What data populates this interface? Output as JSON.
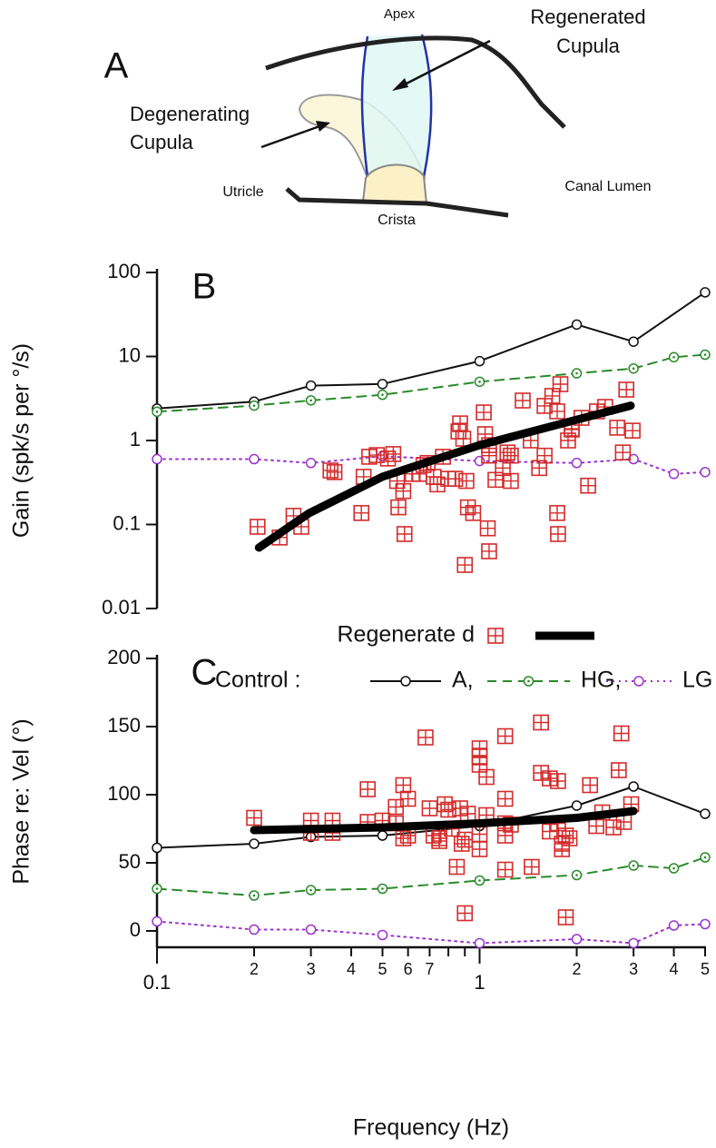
{
  "diagram": {
    "panel": "A",
    "apex": "Apex",
    "regenerated": [
      "Regenerated",
      "Cupula"
    ],
    "degenerating": [
      "Degenerating",
      "Cupula"
    ],
    "utricle": "Utricle",
    "crista": "Crista",
    "lumen": "Canal Lumen"
  },
  "chart_data": [
    {
      "type": "line",
      "panel": "B",
      "ylabel": "Gain (spk/s per °/s)",
      "xlog": true,
      "ylog": true,
      "xlim": [
        0.1,
        5
      ],
      "ylim": [
        0.01,
        100
      ],
      "yticks": [
        0.01,
        0.1,
        1,
        10,
        100
      ],
      "legend_title": "Control :",
      "series": [
        {
          "name": "A,",
          "color": "#111111",
          "line_style": "solid",
          "marker": "circle",
          "x": [
            0.1,
            0.2,
            0.3,
            0.5,
            1,
            2,
            3,
            5
          ],
          "values": [
            2.4,
            2.9,
            4.5,
            4.7,
            8.8,
            24,
            15,
            58
          ]
        },
        {
          "name": "HG,",
          "color": "#2a8a2a",
          "line_style": "dashed",
          "marker": "circle-dot",
          "x": [
            0.1,
            0.2,
            0.3,
            0.5,
            1,
            2,
            3,
            4,
            5
          ],
          "values": [
            2.2,
            2.6,
            3.0,
            3.5,
            5.0,
            6.3,
            7.2,
            9.8,
            10.5
          ]
        },
        {
          "name": "LG",
          "color": "#9933cc",
          "line_style": "dotted",
          "marker": "circle",
          "x": [
            0.1,
            0.2,
            0.3,
            0.5,
            1,
            2,
            3,
            4,
            5
          ],
          "values": [
            0.6,
            0.6,
            0.54,
            0.65,
            0.57,
            0.54,
            0.6,
            0.4,
            0.42
          ]
        },
        {
          "name": "Regenerate d",
          "type": "scatter",
          "color": "#d42a2a",
          "marker": "boxed-plus",
          "x": [
            0.205,
            0.24,
            0.265,
            0.28,
            0.345,
            0.355,
            0.43,
            0.437,
            0.455,
            0.48,
            0.52,
            0.54,
            0.555,
            0.56,
            0.58,
            0.585,
            0.62,
            0.65,
            0.67,
            0.69,
            0.72,
            0.74,
            0.77,
            0.8,
            0.84,
            0.86,
            0.87,
            0.89,
            0.9,
            0.91,
            0.92,
            0.955,
            1.03,
            1.04,
            1.06,
            1.07,
            1.07,
            1.07,
            1.12,
            1.18,
            1.22,
            1.25,
            1.25,
            1.36,
            1.44,
            1.53,
            1.59,
            1.59,
            1.68,
            1.74,
            1.74,
            1.75,
            1.78,
            1.88,
            1.93,
            1.93,
            2.07,
            2.17,
            2.31,
            2.45,
            2.67,
            2.78,
            2.85,
            2.98
          ],
          "values": [
            0.094,
            0.07,
            0.127,
            0.094,
            0.44,
            0.42,
            0.137,
            0.37,
            0.64,
            0.67,
            0.61,
            0.69,
            0.33,
            0.16,
            0.25,
            0.077,
            0.4,
            0.4,
            0.51,
            0.54,
            0.37,
            0.3,
            0.64,
            0.35,
            0.35,
            1.28,
            1.6,
            1.05,
            0.033,
            0.33,
            0.16,
            0.137,
            2.16,
            1.19,
            0.09,
            0.88,
            0.66,
            0.048,
            0.34,
            0.47,
            0.72,
            0.66,
            0.33,
            2.99,
            1.0,
            0.47,
            0.66,
            2.58,
            3.39,
            0.137,
            2.22,
            0.077,
            4.68,
            1.0,
            1.35,
            1.38,
            1.86,
            0.29,
            2.22,
            2.51,
            1.42,
            0.72,
            4.03,
            1.31
          ]
        },
        {
          "type": "fit",
          "color": "#000000",
          "line_width": 9,
          "x": [
            0.207,
            0.296,
            0.5,
            1,
            2.94
          ],
          "values": [
            0.053,
            0.136,
            0.37,
            0.88,
            2.6
          ]
        }
      ]
    },
    {
      "type": "line",
      "panel": "C",
      "ylabel": "Phase re: Vel (°)",
      "xlabel": "Frequency (Hz)",
      "xlog": true,
      "xlim": [
        0.1,
        5
      ],
      "ylim": [
        -10,
        200
      ],
      "yticks": [
        0,
        50,
        100,
        150,
        200
      ],
      "xticks": [
        0.1,
        {
          "value": 0.2,
          "label": "2"
        },
        {
          "value": 0.3,
          "label": "3"
        },
        {
          "value": 0.4,
          "label": "4"
        },
        {
          "value": 0.5,
          "label": "5"
        },
        {
          "value": 0.6,
          "label": "6"
        },
        {
          "value": 0.7,
          "label": "7"
        },
        1,
        2,
        3,
        4,
        5
      ],
      "xminor_ticks": [
        0.8,
        0.9
      ],
      "series": [
        {
          "color": "#111111",
          "line_style": "solid",
          "marker": "circle",
          "x": [
            0.1,
            0.2,
            0.3,
            0.5,
            1,
            2,
            3,
            5
          ],
          "values": [
            61,
            64,
            69,
            70,
            77,
            92,
            106,
            86
          ]
        },
        {
          "color": "#2a8a2a",
          "line_style": "dashed",
          "marker": "circle-dot",
          "x": [
            0.1,
            0.2,
            0.3,
            0.5,
            1,
            2,
            3,
            4,
            5
          ],
          "values": [
            31,
            26,
            30,
            31,
            37,
            41,
            48,
            46,
            54
          ]
        },
        {
          "color": "#9933cc",
          "line_style": "dotted",
          "marker": "circle",
          "x": [
            0.1,
            0.2,
            0.3,
            0.5,
            1,
            2,
            3,
            4,
            5
          ],
          "values": [
            7,
            1,
            1,
            -3,
            -9,
            -6,
            -9,
            4,
            5
          ]
        },
        {
          "type": "scatter",
          "color": "#d42a2a",
          "marker": "boxed-plus",
          "x": [
            0.2,
            0.3,
            0.3,
            0.35,
            0.35,
            0.45,
            0.45,
            0.5,
            0.55,
            0.55,
            0.58,
            0.58,
            0.6,
            0.6,
            0.68,
            0.7,
            0.72,
            0.75,
            0.75,
            0.78,
            0.8,
            0.82,
            0.85,
            0.87,
            0.88,
            0.9,
            0.9,
            0.92,
            1.0,
            1.0,
            1.0,
            1.0,
            1.0,
            1.05,
            1.05,
            1.2,
            1.2,
            1.2,
            1.2,
            1.2,
            1.25,
            1.45,
            1.55,
            1.55,
            1.65,
            1.65,
            1.75,
            1.75,
            1.8,
            1.8,
            1.85,
            1.85,
            1.9,
            2.2,
            2.3,
            2.4,
            2.6,
            2.7,
            2.75,
            2.8,
            2.95
          ],
          "values": [
            83,
            81,
            72,
            81,
            72,
            104,
            80,
            81,
            91,
            79,
            107,
            68,
            97,
            70,
            142,
            90,
            70,
            68,
            66,
            93,
            89,
            75,
            47,
            90,
            64,
            13,
            67,
            86,
            134,
            128,
            122,
            71,
            60,
            113,
            85,
            143,
            97,
            79,
            70,
            45,
            78,
            47,
            153,
            116,
            112,
            73,
            110,
            79,
            64,
            60,
            10,
            70,
            68,
            107,
            77,
            87,
            76,
            118,
            145,
            80,
            93
          ]
        },
        {
          "type": "fit",
          "color": "#000000",
          "line_width": 9,
          "x": [
            0.2,
            0.5,
            1,
            2,
            3
          ],
          "values": [
            74,
            76,
            79,
            83,
            88
          ]
        }
      ]
    }
  ]
}
